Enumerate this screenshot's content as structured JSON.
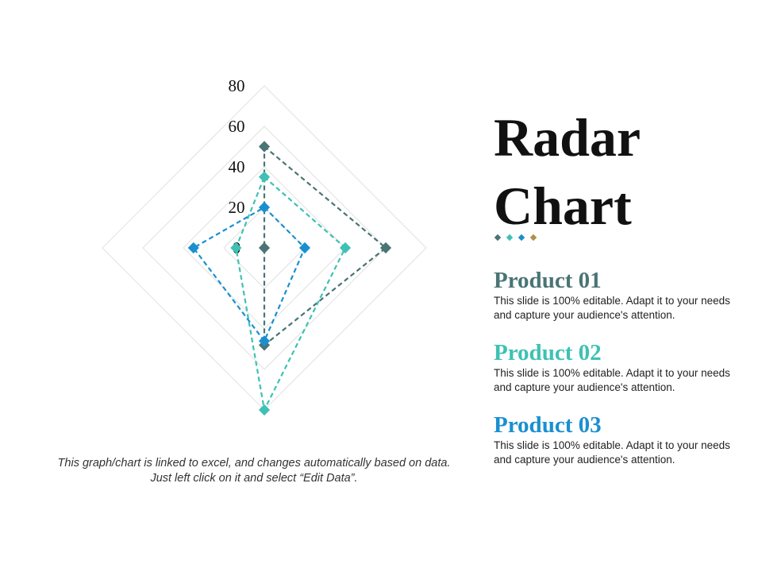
{
  "title": {
    "line1": "Radar",
    "line2": "Chart"
  },
  "accent_dots": [
    "#4a7475",
    "#3ec1b4",
    "#1a8fd0",
    "#b08f4a"
  ],
  "products": [
    {
      "name": "Product 01",
      "color": "#4a7475",
      "description": "This slide is 100% editable. Adapt it to your needs and capture your audience's attention."
    },
    {
      "name": "Product 02",
      "color": "#3ec1b4",
      "description": "This slide is 100% editable. Adapt it to your needs and capture your audience's attention."
    },
    {
      "name": "Product 03",
      "color": "#1a8fd0",
      "description": "This slide is 100% editable. Adapt it to your needs and capture your audience's attention."
    }
  ],
  "footnote": "This graph/chart is linked to excel, and changes automatically based on data. Just left click on it and select “Edit Data”.",
  "chart_data": {
    "type": "radar",
    "axes": 4,
    "rlim": [
      0,
      80
    ],
    "ticks": [
      "0",
      "20",
      "40",
      "60",
      "80"
    ],
    "tick_values": [
      0,
      20,
      40,
      60,
      80
    ],
    "grid": true,
    "legend": "none",
    "series": [
      {
        "color": "#4a7475",
        "values": [
          50,
          60,
          48,
          0
        ]
      },
      {
        "color": "#3ec1b4",
        "values": [
          35,
          40,
          80,
          14
        ]
      },
      {
        "color": "#1a8fd0",
        "values": [
          20,
          20,
          46,
          35
        ]
      }
    ]
  }
}
